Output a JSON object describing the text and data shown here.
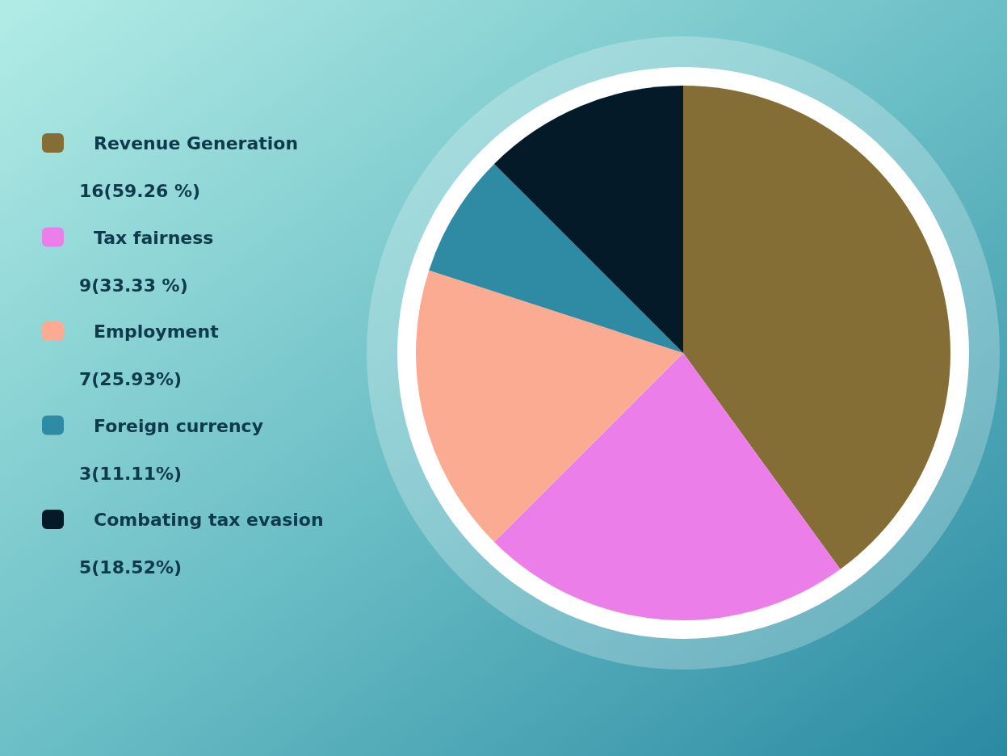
{
  "chart_data": {
    "type": "pie",
    "categories": [
      "Revenue Generation",
      "Tax fairness",
      "Employment",
      "Foreign currency",
      "Combating tax evasion"
    ],
    "values": [
      40,
      22.5,
      17.5,
      7.5,
      12.5
    ],
    "colors": [
      "#846e35",
      "#ec7eea",
      "#fbab91",
      "#2e8ba3",
      "#041a28"
    ],
    "annotations": [
      "16(59.26 %)",
      "9(33.33 %)",
      "7(25.93%)",
      "3(11.11%)",
      "5(18.52%)"
    ],
    "legend": "left"
  }
}
